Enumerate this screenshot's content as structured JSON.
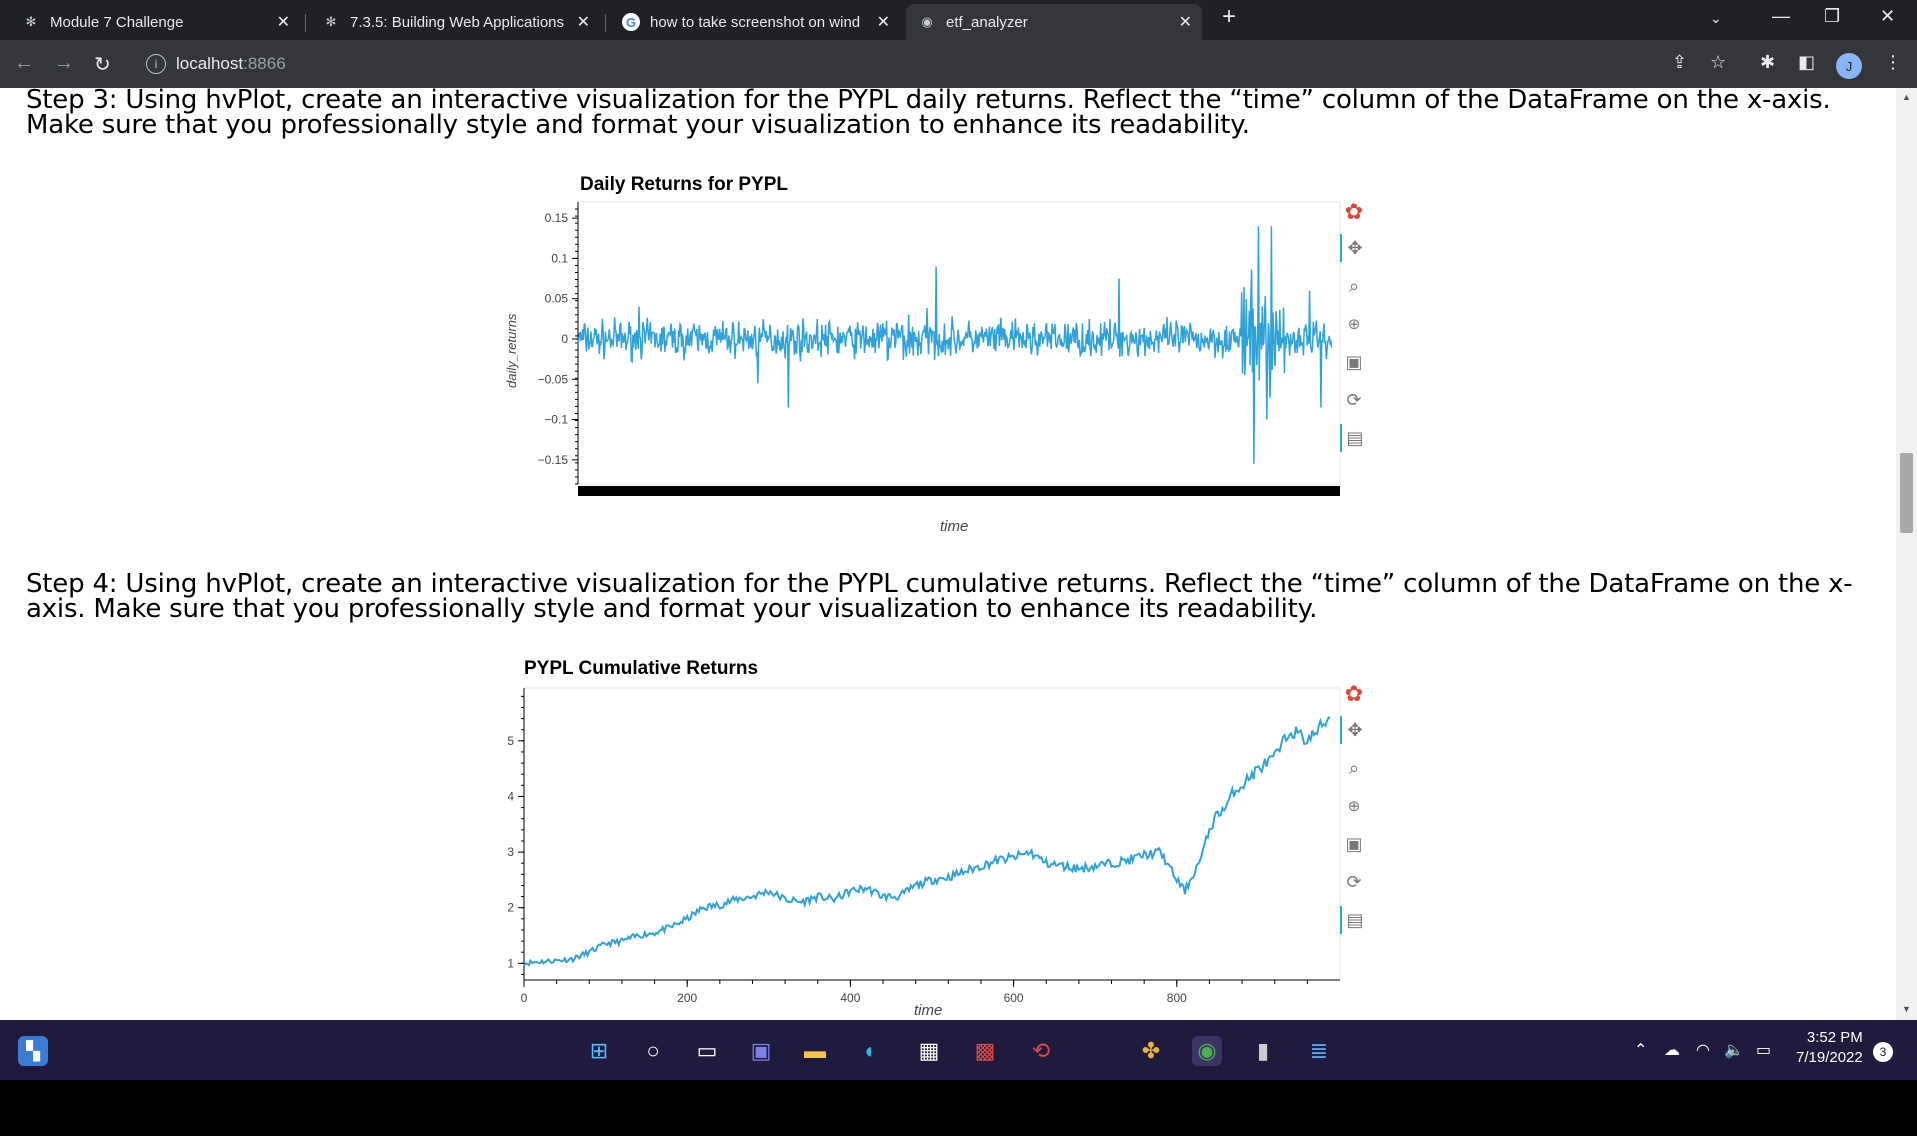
{
  "browser": {
    "tabs": [
      {
        "label": "Module 7 Challenge",
        "icon": "canvas-icon"
      },
      {
        "label": "7.3.5: Building Web Applications",
        "icon": "canvas-icon"
      },
      {
        "label": "how to take screenshot on windo",
        "icon": "google-icon"
      },
      {
        "label": "etf_analyzer",
        "icon": "globe-icon"
      }
    ],
    "url_host": "localhost",
    "url_port": ":8866",
    "avatar_letter": "J"
  },
  "page": {
    "step3": "Step 3: Using hvPlot, create an interactive visualization for the PYPL daily returns. Reflect the “time” column of the DataFrame on the x-axis. Make sure that you professionally style and format your visualization to enhance its readability.",
    "step4": "Step 4: Using hvPlot, create an interactive visualization for the PYPL cumulative returns. Reflect the “time” column of the DataFrame on the x-axis. Make sure that you professionally style and format your visualization to enhance its readability."
  },
  "chart_data": [
    {
      "type": "line",
      "title": "Daily Returns for PYPL",
      "xlabel": "time",
      "ylabel": "daily_returns",
      "y_ticks": [
        "0.15",
        "0.1",
        "0.05",
        "0",
        "−0.05",
        "−0.1",
        "−0.15"
      ],
      "ylim": [
        -0.18,
        0.17
      ],
      "xlim": [
        0,
        1000
      ],
      "color": "#30a2da",
      "x_tick_labels_visible": false
    },
    {
      "type": "line",
      "title": "PYPL Cumulative Returns",
      "xlabel": "time",
      "ylabel": "",
      "y_ticks": [
        "5",
        "4",
        "3",
        "2",
        "1"
      ],
      "x_ticks": [
        "0",
        "200",
        "400",
        "600",
        "800"
      ],
      "ylim": [
        0.7,
        5.95
      ],
      "xlim": [
        0,
        1000
      ],
      "color": "#30a2da",
      "series": [
        {
          "x": [
            0,
            20,
            40,
            60,
            80,
            100,
            120,
            140,
            160,
            180,
            200,
            220,
            240,
            260,
            280,
            300,
            320,
            340,
            360,
            380,
            400,
            420,
            440,
            460,
            480,
            500,
            520,
            540,
            560,
            580,
            600,
            620,
            640,
            660,
            680,
            700,
            720,
            740,
            760,
            780,
            800,
            810,
            820,
            830,
            840,
            850,
            860,
            870,
            880,
            900,
            920,
            940,
            960,
            980,
            990
          ],
          "y": [
            1.0,
            1.03,
            1.05,
            1.08,
            1.2,
            1.35,
            1.4,
            1.5,
            1.55,
            1.65,
            1.8,
            2.0,
            2.05,
            2.15,
            2.2,
            2.3,
            2.15,
            2.1,
            2.2,
            2.15,
            2.3,
            2.35,
            2.2,
            2.2,
            2.4,
            2.5,
            2.55,
            2.65,
            2.75,
            2.85,
            2.9,
            3.0,
            2.8,
            2.75,
            2.7,
            2.75,
            2.8,
            2.85,
            2.95,
            3.0,
            2.5,
            2.3,
            2.6,
            2.9,
            3.4,
            3.7,
            3.8,
            4.1,
            4.2,
            4.5,
            4.7,
            5.2,
            5.0,
            5.3,
            5.5
          ]
        }
      ]
    }
  ],
  "taskbar": {
    "time": "3:52 PM",
    "date": "7/19/2022",
    "notifications": "3"
  }
}
